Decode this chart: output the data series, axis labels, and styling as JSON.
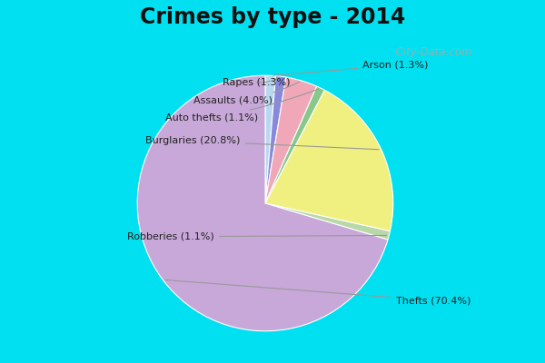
{
  "title": "Crimes by type - 2014",
  "pie_labels": [
    "Arson",
    "Rapes",
    "Assaults",
    "Auto thefts",
    "Burglaries",
    "Robberies",
    "Thefts"
  ],
  "pie_values": [
    1.3,
    1.3,
    4.0,
    1.1,
    20.8,
    1.1,
    70.4
  ],
  "pie_colors": [
    "#b8d8f0",
    "#8888dd",
    "#f0a8b8",
    "#88c888",
    "#f0f080",
    "#b8d8a8",
    "#c8a8d8"
  ],
  "label_texts": [
    "Arson (1.3%)",
    "Rapes (1.3%)",
    "Assaults (4.0%)",
    "Auto thefts (1.1%)",
    "Burglaries (20.8%)",
    "Robberies (1.1%)",
    "Thefts (70.4%)"
  ],
  "background_cyan": "#00e0f0",
  "background_main": "#ccecd8",
  "title_fontsize": 17,
  "watermark": "  City-Data.com"
}
